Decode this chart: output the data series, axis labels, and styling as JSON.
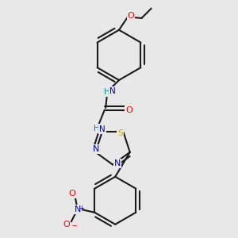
{
  "background_color": "#e8e8e8",
  "bond_color": "#1a1a1a",
  "atom_colors": {
    "N": "#0000cc",
    "O": "#ff0000",
    "S": "#ccaa00",
    "H": "#008888",
    "C": "#1a1a1a"
  }
}
